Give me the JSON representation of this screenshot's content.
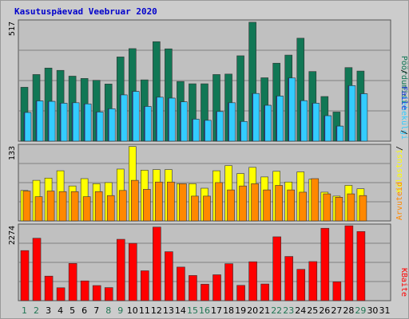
{
  "title": "Kasutuspäevad Veebruar 2020",
  "colors": {
    "background": "#cccccc",
    "panel": "#c0c0c0",
    "title": "#0000cc",
    "grid": "#808080",
    "weekday": "#000000",
    "weekend": "#227755"
  },
  "chart_data": [
    {
      "type": "bar",
      "ymax_label": "517",
      "categories": [
        "1",
        "2",
        "3",
        "4",
        "5",
        "6",
        "7",
        "8",
        "9",
        "10",
        "11",
        "12",
        "13",
        "14",
        "15",
        "16",
        "17",
        "18",
        "19",
        "20",
        "21",
        "22",
        "23",
        "24",
        "25",
        "26",
        "27",
        "28",
        "29",
        "30",
        "31"
      ],
      "weekend": [
        1,
        2,
        8,
        9,
        15,
        16,
        22,
        23,
        29
      ],
      "ylim": [
        0,
        517
      ],
      "series": [
        {
          "name": "Pöördumisi",
          "color": "#117755",
          "values": [
            233,
            288,
            316,
            306,
            281,
            271,
            263,
            247,
            364,
            400,
            265,
            430,
            399,
            258,
            248,
            248,
            288,
            290,
            369,
            514,
            274,
            337,
            372,
            445,
            301,
            193,
            126,
            318,
            303,
            0,
            0
          ]
        },
        {
          "name": "Faile",
          "color": "#1a39d6",
          "values": [
            124,
            174,
            172,
            164,
            166,
            161,
            126,
            140,
            200,
            215,
            150,
            190,
            186,
            170,
            95,
            90,
            128,
            166,
            85,
            206,
            155,
            195,
            273,
            175,
            164,
            110,
            65,
            240,
            205,
            0,
            0
          ]
        },
        {
          "name": "Lehekülgi",
          "color": "#33ccff",
          "values": [
            124,
            174,
            172,
            164,
            166,
            161,
            126,
            140,
            200,
            215,
            150,
            190,
            186,
            170,
            95,
            90,
            128,
            166,
            85,
            206,
            155,
            195,
            273,
            175,
            164,
            110,
            65,
            240,
            205,
            0,
            0
          ]
        }
      ]
    },
    {
      "type": "bar",
      "ymax_label": "133",
      "categories": [
        "1",
        "2",
        "3",
        "4",
        "5",
        "6",
        "7",
        "8",
        "9",
        "10",
        "11",
        "12",
        "13",
        "14",
        "15",
        "16",
        "17",
        "18",
        "19",
        "20",
        "21",
        "22",
        "23",
        "24",
        "25",
        "26",
        "27",
        "28",
        "29",
        "30",
        "31"
      ],
      "ylim": [
        0,
        133
      ],
      "series": [
        {
          "name": "Külastusi",
          "color": "#ffff00",
          "values": [
            54,
            72,
            76,
            89,
            62,
            75,
            66,
            68,
            92,
            132,
            90,
            91,
            91,
            66,
            66,
            58,
            89,
            98,
            84,
            95,
            78,
            88,
            69,
            87,
            74,
            51,
            44,
            63,
            57,
            0,
            0
          ]
        },
        {
          "name": "Arvuteid",
          "color": "#ff8800",
          "values": [
            53,
            43,
            53,
            52,
            52,
            43,
            52,
            45,
            54,
            72,
            56,
            69,
            69,
            66,
            44,
            44,
            68,
            55,
            62,
            66,
            55,
            63,
            55,
            51,
            75,
            48,
            42,
            48,
            45,
            0,
            0
          ]
        }
      ]
    },
    {
      "type": "bar",
      "ymax_label": "2274",
      "categories": [
        "1",
        "2",
        "3",
        "4",
        "5",
        "6",
        "7",
        "8",
        "9",
        "10",
        "11",
        "12",
        "13",
        "14",
        "15",
        "16",
        "17",
        "18",
        "19",
        "20",
        "21",
        "22",
        "23",
        "24",
        "25",
        "26",
        "27",
        "28",
        "29",
        "30",
        "31"
      ],
      "ylim": [
        0,
        2274
      ],
      "series": [
        {
          "name": "KBaite",
          "color": "#ff0000",
          "values": [
            1520,
            1894,
            745,
            392,
            1130,
            600,
            459,
            397,
            1862,
            1739,
            907,
            2232,
            1486,
            1019,
            764,
            499,
            786,
            1122,
            464,
            1181,
            506,
            1937,
            1341,
            951,
            1186,
            2196,
            572,
            2272,
            2098,
            0,
            0
          ]
        }
      ]
    }
  ]
}
